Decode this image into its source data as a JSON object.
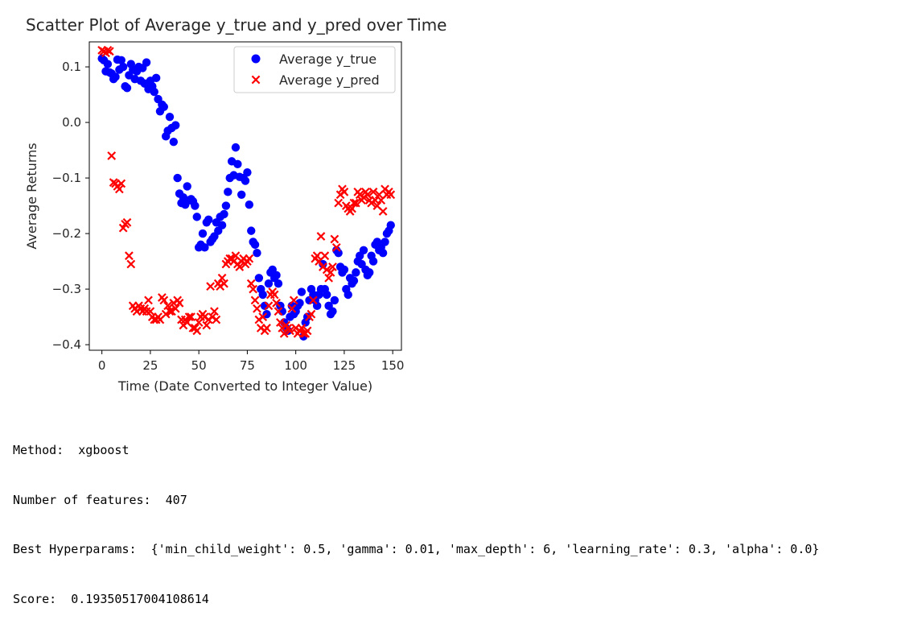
{
  "chart_data": {
    "type": "scatter",
    "title": "Scatter Plot of Average y_true and y_pred over Time",
    "xlabel": "Time (Date Converted to Integer Value)",
    "ylabel": "Average Returns",
    "xlim": [
      -6.5,
      154.5
    ],
    "ylim": [
      -0.41,
      0.145
    ],
    "xticks": [
      0,
      25,
      50,
      75,
      100,
      125,
      150
    ],
    "yticks": [
      0.1,
      0.0,
      -0.1,
      -0.2,
      -0.3,
      -0.4
    ],
    "ytick_labels": [
      "0.1",
      "0.0",
      "−0.1",
      "−0.2",
      "−0.3",
      "−0.4"
    ],
    "grid": false,
    "legend_position": "top-right",
    "series": [
      {
        "name": "Average y_true",
        "marker": "circle",
        "color": "#0000ff",
        "x": [
          0,
          1,
          2,
          3,
          4,
          5,
          6,
          7,
          8,
          9,
          10,
          11,
          12,
          13,
          14,
          15,
          16,
          17,
          18,
          19,
          20,
          21,
          22,
          23,
          24,
          25,
          26,
          27,
          28,
          29,
          30,
          31,
          32,
          33,
          34,
          35,
          36,
          37,
          38,
          39,
          40,
          41,
          42,
          43,
          44,
          45,
          46,
          47,
          48,
          49,
          50,
          51,
          52,
          53,
          54,
          55,
          56,
          57,
          58,
          59,
          60,
          61,
          62,
          63,
          64,
          65,
          66,
          67,
          68,
          69,
          70,
          71,
          72,
          73,
          74,
          75,
          76,
          77,
          78,
          79,
          80,
          81,
          82,
          83,
          84,
          85,
          86,
          87,
          88,
          89,
          90,
          91,
          92,
          93,
          94,
          95,
          96,
          97,
          98,
          99,
          100,
          101,
          102,
          103,
          104,
          105,
          106,
          107,
          108,
          109,
          110,
          111,
          112,
          113,
          114,
          115,
          116,
          117,
          118,
          119,
          120,
          121,
          122,
          123,
          124,
          125,
          126,
          127,
          128,
          129,
          130,
          131,
          132,
          133,
          134,
          135,
          136,
          137,
          138,
          139,
          140,
          141,
          142,
          143,
          144,
          145,
          146,
          147,
          148,
          149
        ],
        "y": [
          0.115,
          0.112,
          0.092,
          0.105,
          0.09,
          0.088,
          0.078,
          0.082,
          0.113,
          0.095,
          0.112,
          0.1,
          0.065,
          0.062,
          0.085,
          0.105,
          0.095,
          0.078,
          0.092,
          0.1,
          0.075,
          0.098,
          0.07,
          0.108,
          0.06,
          0.075,
          0.065,
          0.055,
          0.08,
          0.042,
          0.02,
          0.032,
          0.028,
          -0.025,
          -0.015,
          0.01,
          -0.01,
          -0.035,
          -0.005,
          -0.1,
          -0.128,
          -0.145,
          -0.135,
          -0.148,
          -0.115,
          -0.14,
          -0.138,
          -0.142,
          -0.15,
          -0.17,
          -0.225,
          -0.22,
          -0.2,
          -0.225,
          -0.18,
          -0.175,
          -0.215,
          -0.21,
          -0.205,
          -0.18,
          -0.195,
          -0.17,
          -0.185,
          -0.165,
          -0.15,
          -0.125,
          -0.1,
          -0.07,
          -0.095,
          -0.045,
          -0.075,
          -0.098,
          -0.13,
          -0.1,
          -0.105,
          -0.09,
          -0.148,
          -0.195,
          -0.215,
          -0.22,
          -0.235,
          -0.28,
          -0.3,
          -0.31,
          -0.33,
          -0.345,
          -0.29,
          -0.27,
          -0.265,
          -0.28,
          -0.275,
          -0.29,
          -0.33,
          -0.34,
          -0.36,
          -0.37,
          -0.375,
          -0.35,
          -0.33,
          -0.345,
          -0.34,
          -0.33,
          -0.325,
          -0.305,
          -0.385,
          -0.36,
          -0.35,
          -0.32,
          -0.3,
          -0.31,
          -0.32,
          -0.33,
          -0.31,
          -0.3,
          -0.255,
          -0.3,
          -0.31,
          -0.33,
          -0.345,
          -0.34,
          -0.32,
          -0.23,
          -0.235,
          -0.26,
          -0.27,
          -0.265,
          -0.3,
          -0.31,
          -0.28,
          -0.29,
          -0.285,
          -0.27,
          -0.25,
          -0.24,
          -0.255,
          -0.23,
          -0.265,
          -0.275,
          -0.27,
          -0.24,
          -0.25,
          -0.22,
          -0.215,
          -0.23,
          -0.225,
          -0.235,
          -0.215,
          -0.2,
          -0.195,
          -0.185
        ]
      },
      {
        "name": "Average y_pred",
        "marker": "x",
        "color": "#ff0000",
        "x": [
          0,
          1,
          2,
          3,
          4,
          5,
          6,
          7,
          8,
          9,
          10,
          11,
          12,
          13,
          14,
          15,
          16,
          17,
          18,
          19,
          20,
          21,
          22,
          23,
          24,
          25,
          26,
          27,
          28,
          29,
          30,
          31,
          32,
          33,
          34,
          35,
          36,
          37,
          38,
          39,
          40,
          41,
          42,
          43,
          44,
          45,
          46,
          47,
          48,
          49,
          50,
          51,
          52,
          53,
          54,
          55,
          56,
          57,
          58,
          59,
          60,
          61,
          62,
          63,
          64,
          65,
          66,
          67,
          68,
          69,
          70,
          71,
          72,
          73,
          74,
          75,
          76,
          77,
          78,
          79,
          80,
          81,
          82,
          83,
          84,
          85,
          86,
          87,
          88,
          89,
          90,
          91,
          92,
          93,
          94,
          95,
          96,
          97,
          98,
          99,
          100,
          101,
          102,
          103,
          104,
          105,
          106,
          107,
          108,
          109,
          110,
          111,
          112,
          113,
          114,
          115,
          116,
          117,
          118,
          119,
          120,
          121,
          122,
          123,
          124,
          125,
          126,
          127,
          128,
          129,
          130,
          131,
          132,
          133,
          134,
          135,
          136,
          137,
          138,
          139,
          140,
          141,
          142,
          143,
          144,
          145,
          146,
          147,
          148,
          149
        ],
        "y": [
          0.13,
          0.128,
          0.125,
          0.13,
          0.128,
          -0.06,
          -0.108,
          -0.11,
          -0.115,
          -0.12,
          -0.11,
          -0.19,
          -0.183,
          -0.18,
          -0.24,
          -0.255,
          -0.33,
          -0.335,
          -0.34,
          -0.33,
          -0.335,
          -0.34,
          -0.335,
          -0.34,
          -0.32,
          -0.34,
          -0.35,
          -0.355,
          -0.355,
          -0.35,
          -0.355,
          -0.315,
          -0.32,
          -0.345,
          -0.33,
          -0.34,
          -0.34,
          -0.325,
          -0.335,
          -0.32,
          -0.325,
          -0.355,
          -0.365,
          -0.355,
          -0.36,
          -0.35,
          -0.35,
          -0.37,
          -0.37,
          -0.375,
          -0.36,
          -0.35,
          -0.345,
          -0.35,
          -0.365,
          -0.355,
          -0.295,
          -0.35,
          -0.34,
          -0.355,
          -0.29,
          -0.295,
          -0.28,
          -0.29,
          -0.255,
          -0.25,
          -0.245,
          -0.245,
          -0.25,
          -0.24,
          -0.255,
          -0.26,
          -0.25,
          -0.245,
          -0.255,
          -0.25,
          -0.245,
          -0.29,
          -0.3,
          -0.32,
          -0.335,
          -0.355,
          -0.37,
          -0.35,
          -0.375,
          -0.37,
          -0.33,
          -0.31,
          -0.305,
          -0.31,
          -0.325,
          -0.34,
          -0.36,
          -0.37,
          -0.38,
          -0.365,
          -0.37,
          -0.375,
          -0.335,
          -0.32,
          -0.37,
          -0.38,
          -0.375,
          -0.37,
          -0.38,
          -0.38,
          -0.375,
          -0.35,
          -0.345,
          -0.32,
          -0.245,
          -0.24,
          -0.25,
          -0.205,
          -0.26,
          -0.24,
          -0.265,
          -0.28,
          -0.27,
          -0.26,
          -0.21,
          -0.225,
          -0.145,
          -0.13,
          -0.12,
          -0.125,
          -0.15,
          -0.155,
          -0.16,
          -0.155,
          -0.145,
          -0.145,
          -0.125,
          -0.13,
          -0.14,
          -0.135,
          -0.125,
          -0.13,
          -0.14,
          -0.145,
          -0.125,
          -0.14,
          -0.15,
          -0.13,
          -0.14,
          -0.16,
          -0.12,
          -0.13,
          -0.125,
          -0.13
        ]
      }
    ]
  },
  "output": {
    "method_label": "Method:  ",
    "method": "xgboost",
    "features_label": "Number of features:  ",
    "features": "407",
    "hyper_label": "Best Hyperparams:  ",
    "hyper": "{'min_child_weight': 0.5, 'gamma': 0.01, 'max_depth': 6, 'learning_rate': 0.3, 'alpha': 0.0}",
    "score_label": "Score:  ",
    "score": "0.19350517004108614"
  }
}
